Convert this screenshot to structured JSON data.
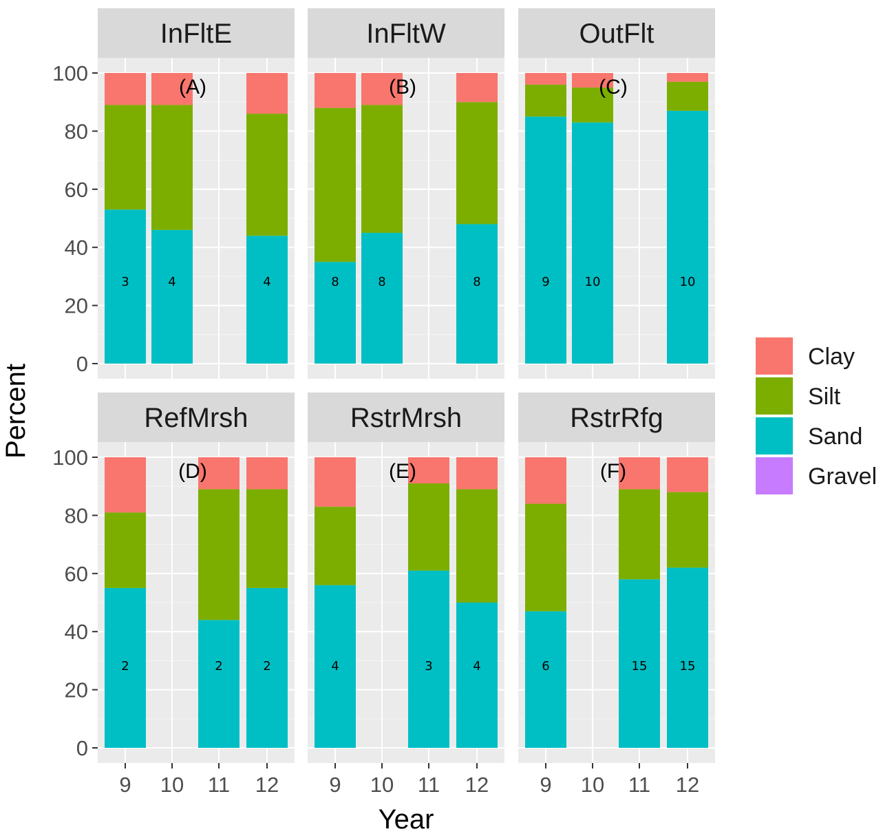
{
  "chart_data": {
    "type": "bar",
    "stacked": true,
    "facet_layout": "2 rows x 3 columns",
    "xlabel": "Year",
    "ylabel": "Percent",
    "ylim": [
      0,
      100
    ],
    "y_ticks": [
      "0",
      "20",
      "40",
      "60",
      "80",
      "100"
    ],
    "x_categories": [
      "9",
      "10",
      "11",
      "12"
    ],
    "grid": true,
    "legend": {
      "position": "right",
      "entries": [
        {
          "name": "Clay",
          "color": "#F8766D"
        },
        {
          "name": "Silt",
          "color": "#7CAE00"
        },
        {
          "name": "Sand",
          "color": "#00BFC4"
        },
        {
          "name": "Gravel",
          "color": "#C77CFF"
        }
      ]
    },
    "panels": [
      {
        "title": "InFltE",
        "tag": "(A)",
        "bars": [
          {
            "year": "9",
            "sand": 53,
            "silt": 36,
            "clay": 11,
            "gravel": 0,
            "n": "3"
          },
          {
            "year": "10",
            "sand": 46,
            "silt": 43,
            "clay": 11,
            "gravel": 0,
            "n": "4"
          },
          {
            "year": "12",
            "sand": 44,
            "silt": 42,
            "clay": 14,
            "gravel": 0,
            "n": "4"
          }
        ]
      },
      {
        "title": "InFltW",
        "tag": "(B)",
        "bars": [
          {
            "year": "9",
            "sand": 35,
            "silt": 53,
            "clay": 12,
            "gravel": 0,
            "n": "8"
          },
          {
            "year": "10",
            "sand": 45,
            "silt": 44,
            "clay": 11,
            "gravel": 0,
            "n": "8"
          },
          {
            "year": "12",
            "sand": 48,
            "silt": 42,
            "clay": 10,
            "gravel": 0,
            "n": "8"
          }
        ]
      },
      {
        "title": "OutFlt",
        "tag": "(C)",
        "bars": [
          {
            "year": "9",
            "sand": 85,
            "silt": 11,
            "clay": 4,
            "gravel": 0,
            "n": "9"
          },
          {
            "year": "10",
            "sand": 83,
            "silt": 12,
            "clay": 5,
            "gravel": 0,
            "n": "10"
          },
          {
            "year": "12",
            "sand": 87,
            "silt": 10,
            "clay": 3,
            "gravel": 0,
            "n": "10"
          }
        ]
      },
      {
        "title": "RefMrsh",
        "tag": "(D)",
        "bars": [
          {
            "year": "9",
            "sand": 55,
            "silt": 26,
            "clay": 19,
            "gravel": 0,
            "n": "2"
          },
          {
            "year": "11",
            "sand": 44,
            "silt": 45,
            "clay": 11,
            "gravel": 0,
            "n": "2"
          },
          {
            "year": "12",
            "sand": 55,
            "silt": 34,
            "clay": 11,
            "gravel": 0,
            "n": "2"
          }
        ]
      },
      {
        "title": "RstrMrsh",
        "tag": "(E)",
        "bars": [
          {
            "year": "9",
            "sand": 56,
            "silt": 27,
            "clay": 17,
            "gravel": 0,
            "n": "4"
          },
          {
            "year": "11",
            "sand": 61,
            "silt": 30,
            "clay": 9,
            "gravel": 0,
            "n": "3"
          },
          {
            "year": "12",
            "sand": 50,
            "silt": 39,
            "clay": 11,
            "gravel": 0,
            "n": "4"
          }
        ]
      },
      {
        "title": "RstrRfg",
        "tag": "(F)",
        "bars": [
          {
            "year": "9",
            "sand": 47,
            "silt": 37,
            "clay": 16,
            "gravel": 0,
            "n": "6"
          },
          {
            "year": "11",
            "sand": 58,
            "silt": 31,
            "clay": 11,
            "gravel": 0,
            "n": "15"
          },
          {
            "year": "12",
            "sand": 62,
            "silt": 26,
            "clay": 12,
            "gravel": 0,
            "n": "15"
          }
        ]
      }
    ]
  }
}
